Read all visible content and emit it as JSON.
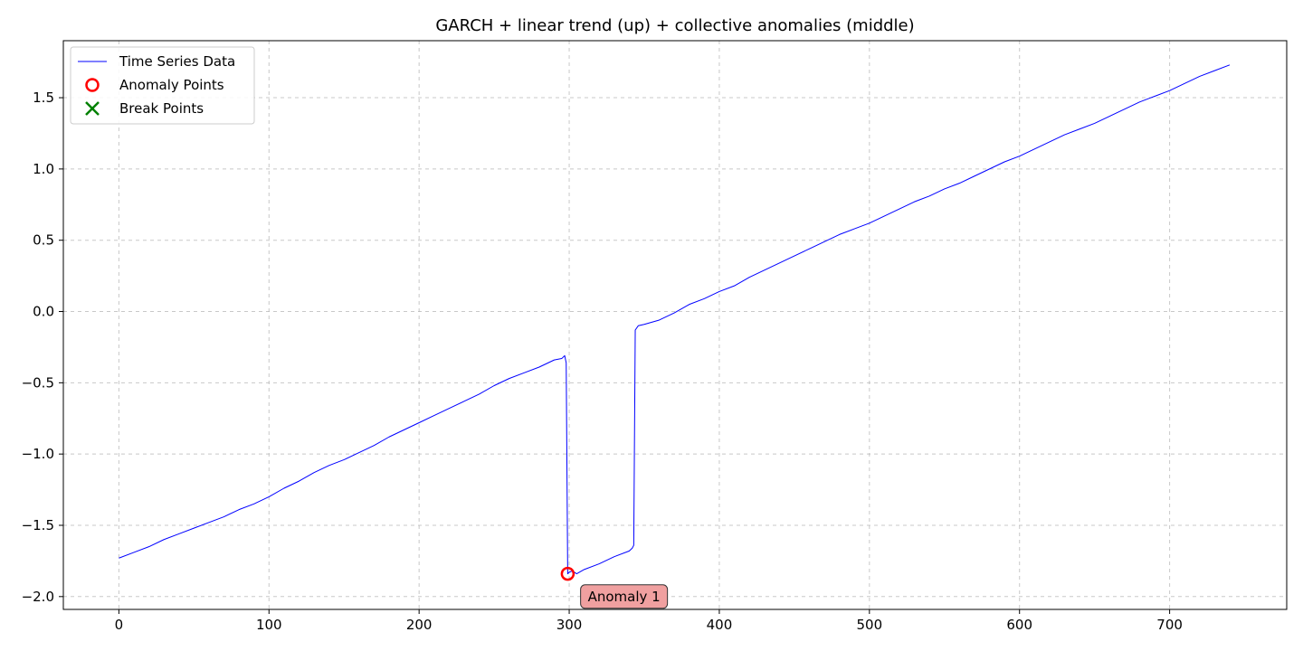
{
  "chart_data": {
    "type": "line",
    "title": "GARCH + linear trend (up) + collective anomalies (middle)",
    "xlabel": "",
    "ylabel": "",
    "xlim": [
      -37,
      778
    ],
    "ylim": [
      -2.09,
      1.9
    ],
    "x_ticks": [
      0,
      100,
      200,
      300,
      400,
      500,
      600,
      700
    ],
    "y_ticks": [
      1.5,
      1.0,
      0.5,
      0.0,
      -0.5,
      -1.0,
      -1.5,
      -2.0
    ],
    "y_tick_labels": [
      "1.5",
      "1.0",
      "0.5",
      "0.0",
      "−0.5",
      "−1.0",
      "−1.5",
      "−2.0"
    ],
    "grid": true,
    "legend_position": "top-left",
    "series": [
      {
        "name": "Time Series Data",
        "color": "#0000ff",
        "x": [
          0,
          10,
          20,
          30,
          40,
          50,
          60,
          70,
          80,
          90,
          100,
          110,
          120,
          130,
          140,
          150,
          160,
          170,
          180,
          190,
          200,
          210,
          220,
          230,
          240,
          250,
          260,
          270,
          280,
          290,
          295,
          297,
          298,
          299,
          300,
          302,
          305,
          310,
          320,
          330,
          340,
          342,
          343,
          344,
          346,
          350,
          360,
          370,
          380,
          390,
          400,
          410,
          420,
          430,
          440,
          450,
          460,
          470,
          480,
          490,
          500,
          510,
          520,
          530,
          540,
          550,
          560,
          570,
          580,
          590,
          600,
          610,
          620,
          630,
          640,
          650,
          660,
          670,
          680,
          690,
          700,
          710,
          720,
          730,
          740
        ],
        "y": [
          -1.73,
          -1.69,
          -1.65,
          -1.6,
          -1.56,
          -1.52,
          -1.48,
          -1.44,
          -1.39,
          -1.35,
          -1.3,
          -1.24,
          -1.19,
          -1.13,
          -1.08,
          -1.04,
          -0.99,
          -0.94,
          -0.88,
          -0.83,
          -0.78,
          -0.73,
          -0.68,
          -0.63,
          -0.58,
          -0.52,
          -0.47,
          -0.43,
          -0.39,
          -0.34,
          -0.33,
          -0.31,
          -0.36,
          -1.84,
          -1.83,
          -1.82,
          -1.84,
          -1.81,
          -1.77,
          -1.72,
          -1.68,
          -1.66,
          -1.64,
          -0.13,
          -0.1,
          -0.09,
          -0.06,
          -0.01,
          0.05,
          0.09,
          0.14,
          0.18,
          0.24,
          0.29,
          0.34,
          0.39,
          0.44,
          0.49,
          0.54,
          0.58,
          0.62,
          0.67,
          0.72,
          0.77,
          0.81,
          0.86,
          0.9,
          0.95,
          1.0,
          1.05,
          1.09,
          1.14,
          1.19,
          1.24,
          1.28,
          1.32,
          1.37,
          1.42,
          1.47,
          1.51,
          1.55,
          1.6,
          1.65,
          1.69,
          1.73
        ]
      }
    ],
    "anomaly_points": {
      "name": "Anomaly Points",
      "color": "#ff0000",
      "points": [
        {
          "x": 299,
          "y": -1.84
        }
      ]
    },
    "break_points": {
      "name": "Break Points",
      "color": "#008000",
      "points": []
    },
    "annotations": [
      {
        "text": "Anomaly 1",
        "x": 310,
        "y": -2.0,
        "bg": "#f0a0a0"
      }
    ]
  }
}
